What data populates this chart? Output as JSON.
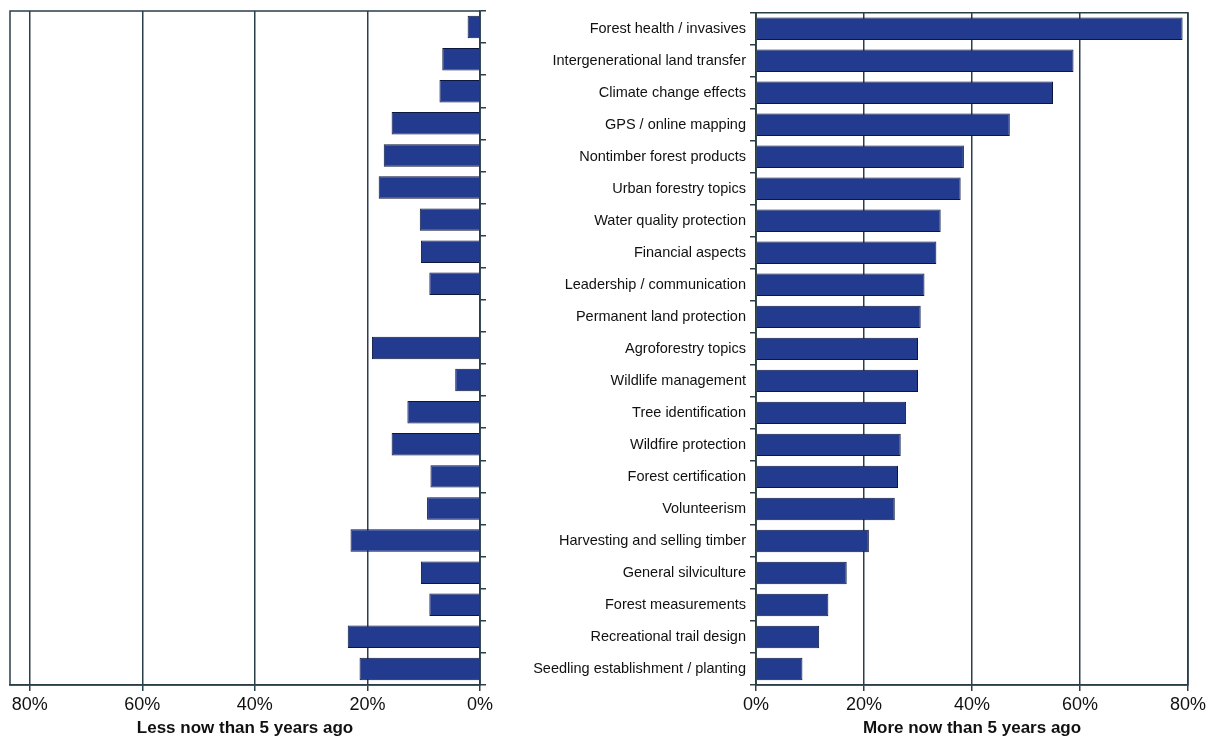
{
  "chart_data": [
    {
      "type": "bar",
      "orientation": "horizontal",
      "xlabel": "Less now than 5 years ago",
      "categories": [
        null,
        null,
        null,
        null,
        null,
        null,
        null,
        null,
        null,
        null,
        null,
        null,
        null,
        null,
        null,
        null,
        null,
        null,
        null,
        null,
        null
      ],
      "values": [
        2.2,
        6.7,
        7.2,
        15.7,
        17.1,
        18,
        10.7,
        10.5,
        9,
        null,
        19.2,
        4.4,
        12.9,
        15.7,
        8.8,
        9.4,
        23,
        10.5,
        9,
        23.5,
        21.4
      ],
      "color": "#233b8f",
      "xlim": [
        83.5,
        0
      ],
      "xticks": [
        {
          "value": 80,
          "label": "80%"
        },
        {
          "value": 60,
          "label": "60%"
        },
        {
          "value": 40,
          "label": "40%"
        },
        {
          "value": 20,
          "label": "20%"
        },
        {
          "value": 0,
          "label": "0%"
        }
      ],
      "grid": "x",
      "tick_labels": "x"
    },
    {
      "type": "bar",
      "orientation": "horizontal",
      "xlabel": "More now than 5 years ago",
      "categories": [
        "Forest health / invasives",
        "Intergenerational land transfer",
        "Climate change effects",
        "GPS / online mapping",
        "Nontimber forest products",
        "Urban forestry topics",
        "Water quality protection",
        "Financial aspects",
        "Leadership / communication",
        "Permanent land protection",
        "Agroforestry topics",
        "Wildlife management",
        "Tree identification",
        "Wildfire protection",
        "Forest certification",
        "Volunteerism",
        "Harvesting and selling timber",
        "General silviculture",
        "Forest measurements",
        "Recreational trail design",
        "Seedling establishment / planting"
      ],
      "values": [
        79,
        58.8,
        55,
        47,
        38.5,
        37.9,
        34.2,
        33.4,
        31.2,
        30.5,
        30,
        30,
        27.8,
        26.8,
        26.3,
        25.7,
        20.9,
        16.8,
        13.4,
        11.7,
        8.6
      ],
      "color": "#233b8f",
      "xlim": [
        0,
        80
      ],
      "xticks": [
        {
          "value": 0,
          "label": "0%"
        },
        {
          "value": 20,
          "label": "20%"
        },
        {
          "value": 40,
          "label": "40%"
        },
        {
          "value": 60,
          "label": "60%"
        },
        {
          "value": 80,
          "label": "80%"
        }
      ],
      "grid": "x"
    }
  ]
}
